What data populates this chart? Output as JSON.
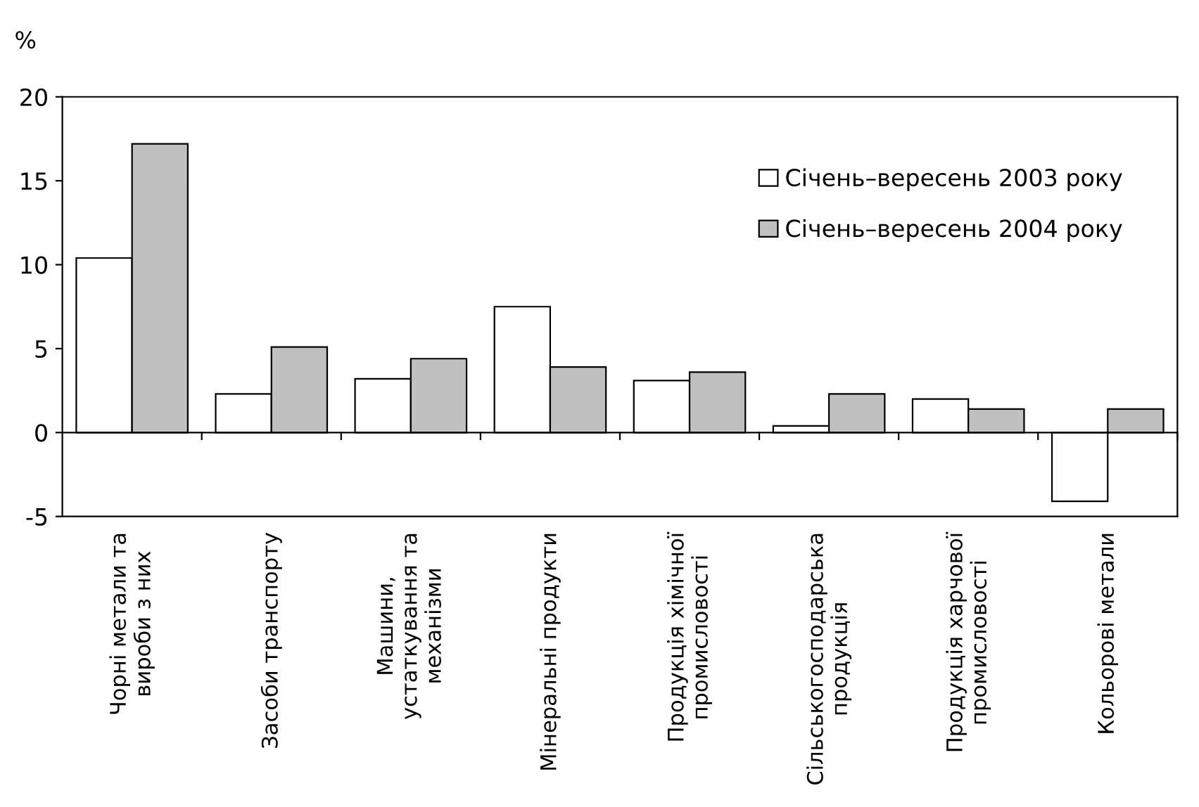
{
  "chart_data": {
    "type": "bar",
    "ylabel": "%",
    "categories": [
      "Чорні метали та\nвироби з них",
      "Засоби транспорту",
      "Машини,\nустаткування та\nмеханізми",
      "Мінеральні продукти",
      "Продукція хімічної\nпромисловості",
      "Сільськогосподарська\nпродукція",
      "Продукція харчової\nпромисловості",
      "Кольорові метали"
    ],
    "series": [
      {
        "name": "Січень–вересень 2003 року",
        "color": "#ffffff",
        "values": [
          10.4,
          2.3,
          3.2,
          7.5,
          3.1,
          0.4,
          2.0,
          -4.1
        ]
      },
      {
        "name": "Січень–вересень 2004 року",
        "color": "#c0c0c0",
        "values": [
          17.2,
          5.1,
          4.4,
          3.9,
          3.6,
          2.3,
          1.4,
          1.4
        ]
      }
    ],
    "ylim": [
      -5,
      20
    ],
    "yticks": [
      -5,
      0,
      5,
      10,
      15,
      20
    ],
    "legend": "top right"
  }
}
